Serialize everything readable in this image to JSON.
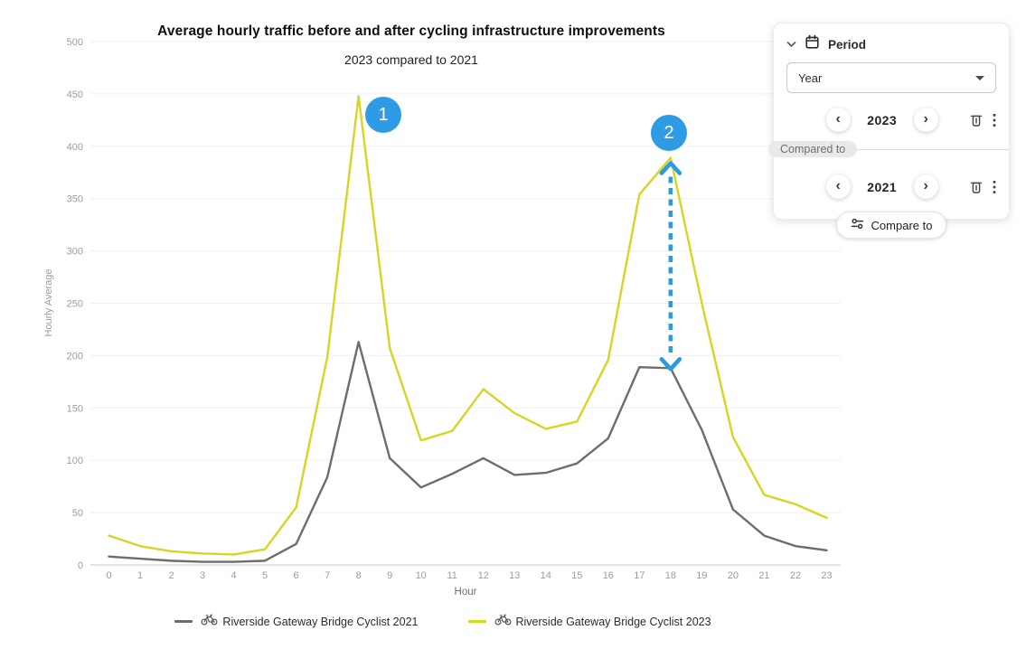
{
  "header": {
    "title": "Average hourly traffic before and after cycling infrastructure improvements",
    "subtitle": "2023 compared to 2021"
  },
  "chart_data": {
    "type": "line",
    "x": [
      0,
      1,
      2,
      3,
      4,
      5,
      6,
      7,
      8,
      9,
      10,
      11,
      12,
      13,
      14,
      15,
      16,
      17,
      18,
      19,
      20,
      21,
      22,
      23
    ],
    "xlabel": "Hour",
    "ylabel": "Hourly Average",
    "ylim": [
      0,
      500
    ],
    "yticks": [
      0,
      50,
      100,
      150,
      200,
      250,
      300,
      350,
      400,
      450,
      500
    ],
    "grid": "horizontal",
    "legend_position": "bottom",
    "series": [
      {
        "name": "Riverside Gateway Bridge Cyclist 2021",
        "color": "#6d6d6d",
        "values": [
          8,
          6,
          4,
          3,
          3,
          4,
          20,
          84,
          213,
          102,
          74,
          87,
          102,
          86,
          88,
          97,
          121,
          189,
          188,
          129,
          53,
          28,
          18,
          14
        ]
      },
      {
        "name": "Riverside Gateway Bridge Cyclist 2023",
        "color": "#d6d622",
        "values": [
          28,
          18,
          13,
          11,
          10,
          15,
          55,
          199,
          448,
          207,
          119,
          128,
          168,
          145,
          130,
          137,
          196,
          354,
          389,
          250,
          122,
          67,
          58,
          45
        ]
      }
    ]
  },
  "annotations": {
    "markers": [
      {
        "label": "1",
        "color": "#2f9be5",
        "at_hour": 8
      },
      {
        "label": "2",
        "color": "#2f9be5",
        "at_hour": 18
      }
    ],
    "arrow": {
      "color": "#2b9be0",
      "hour": 18,
      "from_series": "Riverside Gateway Bridge Cyclist 2023",
      "to_series": "Riverside Gateway Bridge Cyclist 2021"
    }
  },
  "panel": {
    "title": "Period",
    "icons": {
      "header": "calendar-icon",
      "collapse": "chevron-down-icon",
      "row": [
        "trash-icon",
        "kebab-menu-icon"
      ],
      "compare": "sliders-icon"
    },
    "select_value": "Year",
    "primary_year": "2023",
    "compared_label": "Compared to",
    "secondary_year": "2021",
    "compare_button_label": "Compare to",
    "prev_label": "‹",
    "next_label": "›"
  }
}
